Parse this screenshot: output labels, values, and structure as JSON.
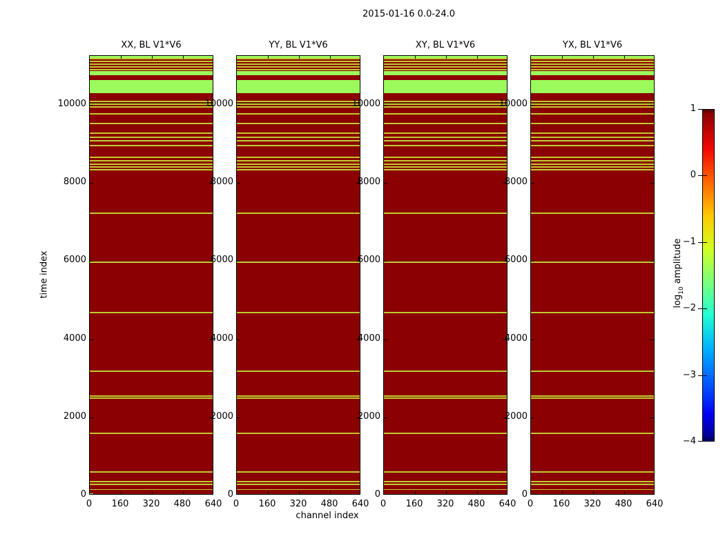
{
  "chart_data": {
    "type": "heatmap",
    "suptitle": "2015-01-16 0.0-24.0",
    "xlabel": "channel index",
    "ylabel": "time index",
    "panels": [
      {
        "title": "XX, BL V1*V6"
      },
      {
        "title": "YY, BL V1*V6"
      },
      {
        "title": "XY, BL V1*V6"
      },
      {
        "title": "YX, BL V1*V6"
      }
    ],
    "x_axis": {
      "min": 0,
      "max": 640,
      "tick_values": [
        0,
        160,
        320,
        480,
        640
      ],
      "tick_labels": [
        "0",
        "160",
        "320",
        "480",
        "640"
      ]
    },
    "y_axis": {
      "min": 0,
      "max": 11255,
      "tick_values": [
        0,
        2000,
        4000,
        6000,
        8000,
        10000
      ],
      "tick_labels": [
        "0",
        "2000",
        "4000",
        "6000",
        "8000",
        "10000"
      ]
    },
    "colorbar": {
      "label_main": "log",
      "label_sub": "10",
      "label_rest": " amplitude",
      "tick_values": [
        1,
        0,
        -1,
        -2,
        -3,
        -4
      ],
      "tick_labels": [
        "1",
        "0",
        "−1",
        "−2",
        "−3",
        "−4"
      ],
      "min": -4,
      "max": 1,
      "colormap": "jet"
    },
    "colors": {
      "background": "#8b0000",
      "stripe_thin": "#bfcc33",
      "stripe_band": "#9bfb5d",
      "stripe_dark": "#2e2400",
      "frame": "#000000"
    },
    "stripes_apply_to": "all_panels",
    "stripes": [
      {
        "time": 11230,
        "thickness": 50,
        "kind": "band"
      },
      {
        "time": 11185,
        "thickness": 35,
        "kind": "thin"
      },
      {
        "time": 11115,
        "thickness": 35,
        "kind": "thin"
      },
      {
        "time": 11045,
        "thickness": 35,
        "kind": "thin"
      },
      {
        "time": 10975,
        "thickness": 35,
        "kind": "thin"
      },
      {
        "time": 10905,
        "thickness": 35,
        "kind": "thin"
      },
      {
        "time": 10810,
        "thickness": 100,
        "kind": "band"
      },
      {
        "time": 10470,
        "thickness": 340,
        "kind": "band"
      },
      {
        "time": 10090,
        "thickness": 35,
        "kind": "thin"
      },
      {
        "time": 10040,
        "thickness": 20,
        "kind": "dark"
      },
      {
        "time": 10015,
        "thickness": 35,
        "kind": "thin"
      },
      {
        "time": 9940,
        "thickness": 35,
        "kind": "thin"
      },
      {
        "time": 9775,
        "thickness": 30,
        "kind": "thin"
      },
      {
        "time": 9520,
        "thickness": 30,
        "kind": "thin"
      },
      {
        "time": 9275,
        "thickness": 30,
        "kind": "thin"
      },
      {
        "time": 9170,
        "thickness": 30,
        "kind": "thin"
      },
      {
        "time": 9080,
        "thickness": 30,
        "kind": "thin"
      },
      {
        "time": 8955,
        "thickness": 30,
        "kind": "thin"
      },
      {
        "time": 8655,
        "thickness": 30,
        "kind": "thin"
      },
      {
        "time": 8570,
        "thickness": 30,
        "kind": "thin"
      },
      {
        "time": 8480,
        "thickness": 30,
        "kind": "thin"
      },
      {
        "time": 8410,
        "thickness": 30,
        "kind": "thin"
      },
      {
        "time": 8340,
        "thickness": 30,
        "kind": "thin"
      },
      {
        "time": 7230,
        "thickness": 30,
        "kind": "thin"
      },
      {
        "time": 5975,
        "thickness": 30,
        "kind": "thin"
      },
      {
        "time": 4685,
        "thickness": 30,
        "kind": "thin"
      },
      {
        "time": 3180,
        "thickness": 30,
        "kind": "thin"
      },
      {
        "time": 2550,
        "thickness": 30,
        "kind": "thin"
      },
      {
        "time": 2490,
        "thickness": 30,
        "kind": "thin"
      },
      {
        "time": 1590,
        "thickness": 30,
        "kind": "thin"
      },
      {
        "time": 605,
        "thickness": 30,
        "kind": "thin"
      },
      {
        "time": 350,
        "thickness": 30,
        "kind": "thin"
      },
      {
        "time": 280,
        "thickness": 30,
        "kind": "thin"
      },
      {
        "time": 150,
        "thickness": 30,
        "kind": "thin"
      }
    ],
    "corner_mark": {
      "panel_index": 0,
      "channel_range": [
        0,
        18
      ],
      "time_range": [
        0,
        45
      ],
      "kind": "band"
    }
  }
}
